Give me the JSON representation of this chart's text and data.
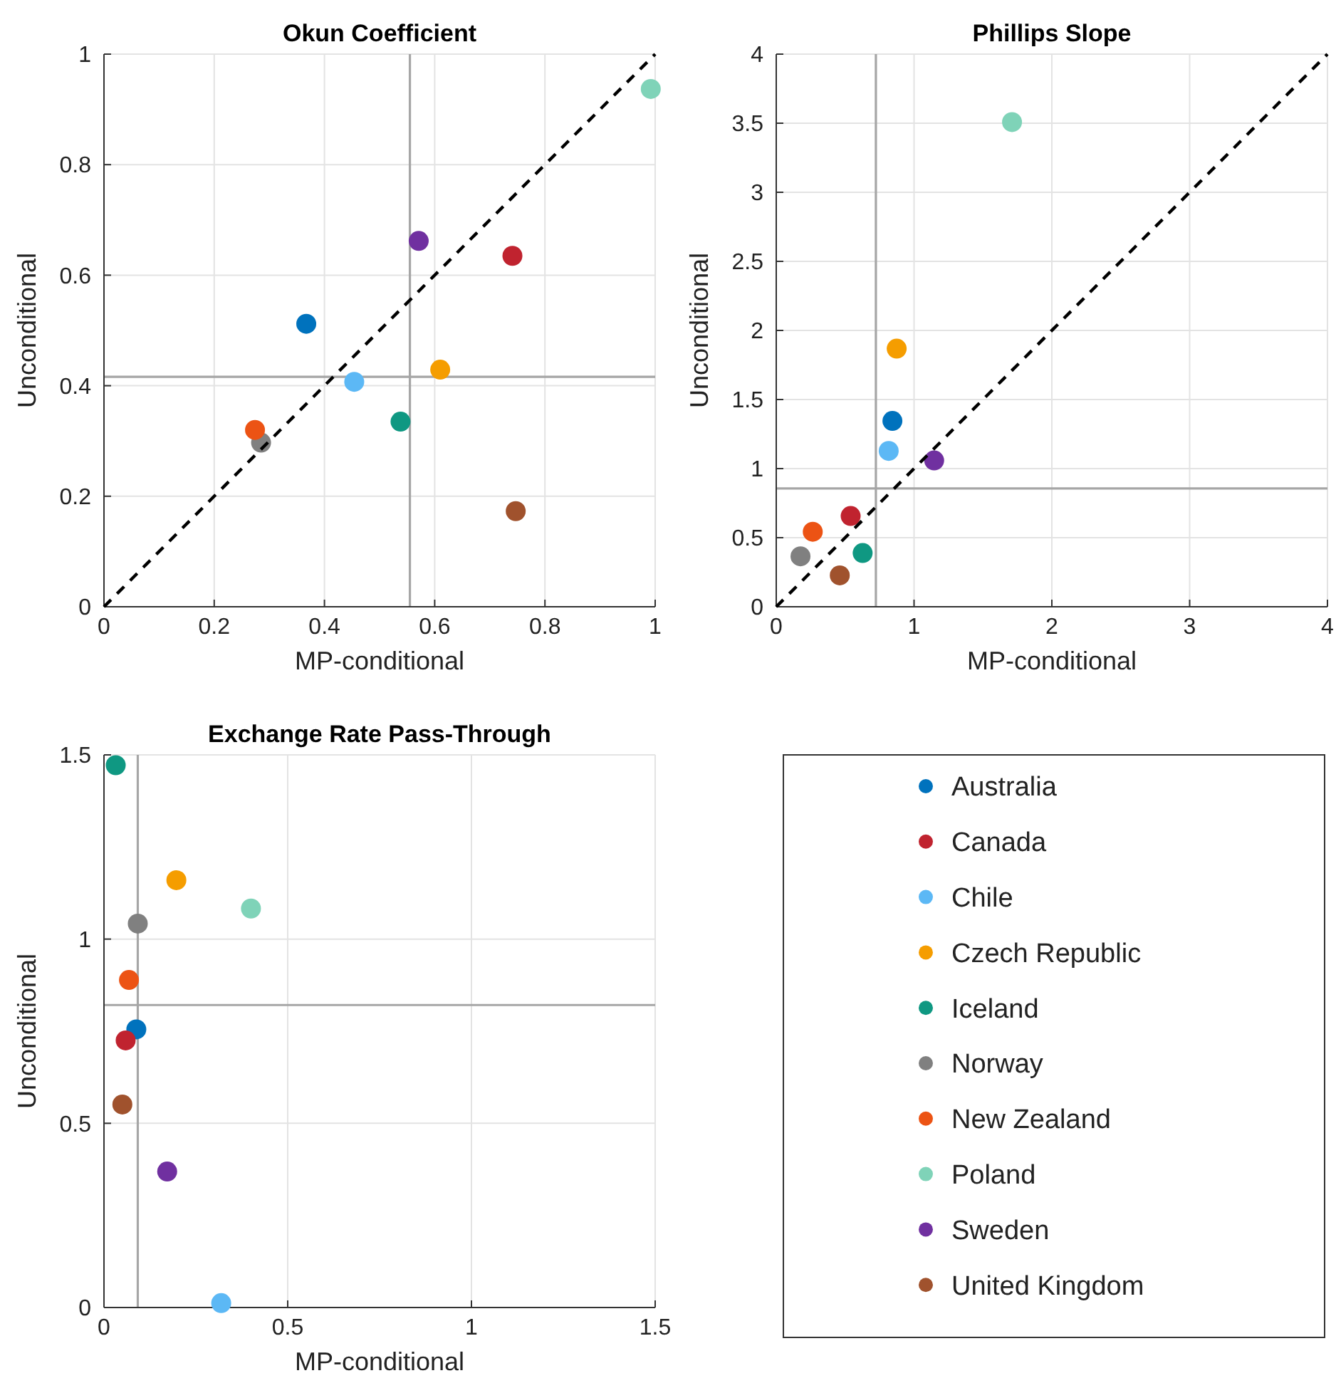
{
  "chart_data": [
    {
      "type": "scatter",
      "title": "Okun Coefficient",
      "xlabel": "MP-conditional",
      "ylabel": "Unconditional",
      "xlim": [
        0,
        1
      ],
      "ylim": [
        0,
        1
      ],
      "xticks": [
        0,
        0.2,
        0.4,
        0.6,
        0.8,
        1
      ],
      "yticks": [
        0,
        0.2,
        0.4,
        0.6,
        0.8,
        1
      ],
      "grid": true,
      "marker": "circle",
      "legend": false,
      "series": [
        {
          "color": "#0072bd",
          "x": [
            0.367
          ],
          "values": [
            0.512
          ]
        },
        {
          "color": "#c0232f",
          "x": [
            0.741
          ],
          "values": [
            0.635
          ]
        },
        {
          "color": "#5cb8f5",
          "x": [
            0.454
          ],
          "values": [
            0.407
          ]
        },
        {
          "color": "#f59d00",
          "x": [
            0.61
          ],
          "values": [
            0.429
          ]
        },
        {
          "color": "#0f9882",
          "x": [
            0.538
          ],
          "values": [
            0.335
          ]
        },
        {
          "color": "#808080",
          "x": [
            0.285
          ],
          "values": [
            0.297
          ]
        },
        {
          "color": "#ec5314",
          "x": [
            0.274
          ],
          "values": [
            0.32
          ]
        },
        {
          "color": "#7fd3b8",
          "x": [
            0.992
          ],
          "values": [
            0.937
          ]
        },
        {
          "color": "#7030a0",
          "x": [
            0.571
          ],
          "values": [
            0.662
          ]
        },
        {
          "color": "#a0522d",
          "x": [
            0.747
          ],
          "values": [
            0.173
          ]
        },
        {
          "type": "line",
          "color": "#000000",
          "line_style": "dashed",
          "marker": "none",
          "x": [
            0,
            1
          ],
          "values": [
            0,
            1
          ]
        }
      ],
      "ref_lines": [
        {
          "axis": "x",
          "value": 0.555,
          "color": "#a6a6a6"
        },
        {
          "axis": "y",
          "value": 0.416,
          "color": "#a6a6a6"
        }
      ]
    },
    {
      "type": "scatter",
      "title": "Phillips Slope",
      "xlabel": "MP-conditional",
      "ylabel": "Unconditional",
      "xlim": [
        0,
        4
      ],
      "ylim": [
        0,
        4
      ],
      "xticks": [
        0,
        1,
        2,
        3,
        4
      ],
      "yticks": [
        0,
        0.5,
        1,
        1.5,
        2,
        2.5,
        3,
        3.5,
        4
      ],
      "grid": true,
      "marker": "circle",
      "legend": false,
      "series": [
        {
          "color": "#0072bd",
          "x": [
            0.843
          ],
          "values": [
            1.345
          ]
        },
        {
          "color": "#c0232f",
          "x": [
            0.54
          ],
          "values": [
            0.657
          ]
        },
        {
          "color": "#5cb8f5",
          "x": [
            0.816
          ],
          "values": [
            1.128
          ]
        },
        {
          "color": "#f59d00",
          "x": [
            0.874
          ],
          "values": [
            1.868
          ]
        },
        {
          "color": "#0f9882",
          "x": [
            0.627
          ],
          "values": [
            0.389
          ]
        },
        {
          "color": "#808080",
          "x": [
            0.176
          ],
          "values": [
            0.365
          ]
        },
        {
          "color": "#ec5314",
          "x": [
            0.265
          ],
          "values": [
            0.543
          ]
        },
        {
          "color": "#7fd3b8",
          "x": [
            1.711
          ],
          "values": [
            3.508
          ]
        },
        {
          "color": "#7030a0",
          "x": [
            1.146
          ],
          "values": [
            1.059
          ]
        },
        {
          "color": "#a0522d",
          "x": [
            0.461
          ],
          "values": [
            0.227
          ]
        },
        {
          "type": "line",
          "color": "#000000",
          "line_style": "dashed",
          "marker": "none",
          "x": [
            0,
            4
          ],
          "values": [
            0,
            4
          ]
        }
      ],
      "ref_lines": [
        {
          "axis": "x",
          "value": 0.723,
          "color": "#a6a6a6"
        },
        {
          "axis": "y",
          "value": 0.856,
          "color": "#a6a6a6"
        }
      ]
    },
    {
      "type": "scatter",
      "title": "Exchange Rate Pass-Through",
      "xlabel": "MP-conditional",
      "ylabel": "Unconditional",
      "xlim": [
        0,
        1.5
      ],
      "ylim": [
        0,
        1.5
      ],
      "xticks": [
        0,
        0.5,
        1,
        1.5
      ],
      "yticks": [
        0,
        0.5,
        1,
        1.5
      ],
      "grid": true,
      "marker": "circle",
      "legend": "right",
      "series": [
        {
          "name": "Australia",
          "color": "#0072bd",
          "x": [
            0.088
          ],
          "values": [
            0.755
          ]
        },
        {
          "name": "Canada",
          "color": "#c0232f",
          "x": [
            0.059
          ],
          "values": [
            0.725
          ]
        },
        {
          "name": "Chile",
          "color": "#5cb8f5",
          "x": [
            0.319
          ],
          "values": [
            0.012
          ]
        },
        {
          "name": "Czech Republic",
          "color": "#f59d00",
          "x": [
            0.197
          ],
          "values": [
            1.16
          ]
        },
        {
          "name": "Iceland",
          "color": "#0f9882",
          "x": [
            0.032
          ],
          "values": [
            1.472
          ]
        },
        {
          "name": "Norway",
          "color": "#808080",
          "x": [
            0.092
          ],
          "values": [
            1.042
          ]
        },
        {
          "name": "New Zealand",
          "color": "#ec5314",
          "x": [
            0.068
          ],
          "values": [
            0.889
          ]
        },
        {
          "name": "Poland",
          "color": "#7fd3b8",
          "x": [
            0.4
          ],
          "values": [
            1.083
          ]
        },
        {
          "name": "Sweden",
          "color": "#7030a0",
          "x": [
            0.172
          ],
          "values": [
            0.369
          ]
        },
        {
          "name": "United Kingdom",
          "color": "#a0522d",
          "x": [
            0.05
          ],
          "values": [
            0.551
          ]
        }
      ],
      "ref_lines": [
        {
          "axis": "x",
          "value": 0.092,
          "color": "#a6a6a6"
        },
        {
          "axis": "y",
          "value": 0.821,
          "color": "#a6a6a6"
        }
      ]
    }
  ]
}
